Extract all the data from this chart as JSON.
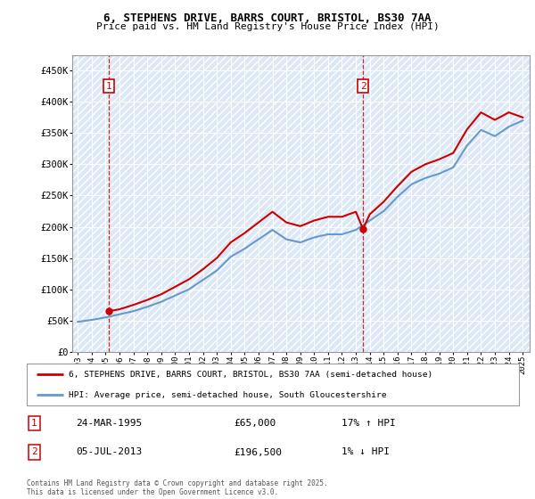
{
  "title_line1": "6, STEPHENS DRIVE, BARRS COURT, BRISTOL, BS30 7AA",
  "title_line2": "Price paid vs. HM Land Registry's House Price Index (HPI)",
  "ylabel_ticks": [
    "£0",
    "£50K",
    "£100K",
    "£150K",
    "£200K",
    "£250K",
    "£300K",
    "£350K",
    "£400K",
    "£450K"
  ],
  "ytick_values": [
    0,
    50000,
    100000,
    150000,
    200000,
    250000,
    300000,
    350000,
    400000,
    450000
  ],
  "ylim": [
    0,
    475000
  ],
  "xlim_start": 1992.6,
  "xlim_end": 2025.5,
  "sale1_x": 1995.23,
  "sale1_y": 65000,
  "sale1_label": "1",
  "sale2_x": 2013.51,
  "sale2_y": 196500,
  "sale2_label": "2",
  "legend_line1": "6, STEPHENS DRIVE, BARRS COURT, BRISTOL, BS30 7AA (semi-detached house)",
  "legend_line2": "HPI: Average price, semi-detached house, South Gloucestershire",
  "footer": "Contains HM Land Registry data © Crown copyright and database right 2025.\nThis data is licensed under the Open Government Licence v3.0.",
  "sale_color": "#cc0000",
  "hpi_color": "#6699cc",
  "bg_color": "#dce8f5",
  "hatch_color": "#c8d8ea",
  "hpi_years": [
    1993,
    1994,
    1995,
    1996,
    1997,
    1998,
    1999,
    2000,
    2001,
    2002,
    2003,
    2004,
    2005,
    2006,
    2007,
    2008,
    2009,
    2010,
    2011,
    2012,
    2013,
    2014,
    2015,
    2016,
    2017,
    2018,
    2019,
    2020,
    2021,
    2022,
    2023,
    2024,
    2025
  ],
  "hpi_values": [
    48000,
    51000,
    55000,
    60000,
    65000,
    72000,
    80000,
    90000,
    100000,
    115000,
    130000,
    152000,
    165000,
    180000,
    195000,
    180000,
    175000,
    183000,
    188000,
    188000,
    195000,
    210000,
    225000,
    248000,
    268000,
    278000,
    285000,
    295000,
    330000,
    355000,
    345000,
    360000,
    370000
  ],
  "prop_years": [
    1995.23,
    1996,
    1997,
    1998,
    1999,
    2000,
    2001,
    2002,
    2003,
    2004,
    2005,
    2006,
    2007,
    2008,
    2009,
    2010,
    2011,
    2012,
    2013,
    2013.51,
    2014,
    2015,
    2016,
    2017,
    2018,
    2019,
    2020,
    2021,
    2022,
    2023,
    2024,
    2025
  ],
  "prop_values": [
    65000,
    68000,
    75000,
    83000,
    92000,
    104000,
    116000,
    132000,
    150000,
    175000,
    190000,
    207000,
    224000,
    207000,
    201000,
    210000,
    216000,
    216000,
    224000,
    196500,
    220000,
    240000,
    265000,
    288000,
    300000,
    308000,
    318000,
    356000,
    383000,
    371000,
    383000,
    375000
  ]
}
